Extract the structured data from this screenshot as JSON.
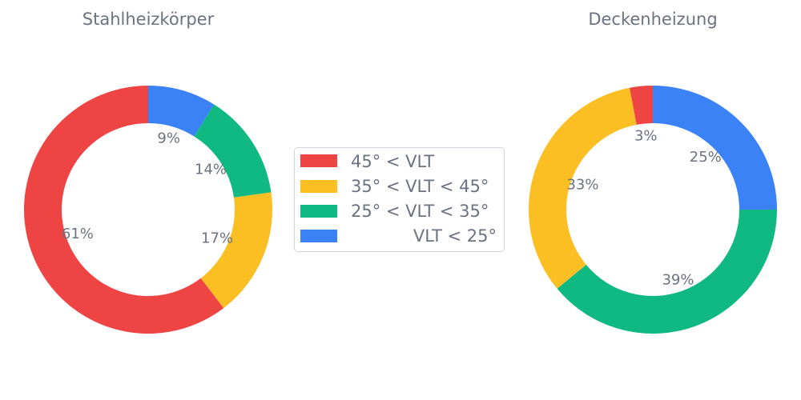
{
  "chart_data": [
    {
      "type": "pie",
      "style": "donut",
      "title": "Stahlheizkörper",
      "categories": [
        "VLT < 25°",
        "25° < VLT < 35°",
        "35° < VLT < 45°",
        "45° < VLT"
      ],
      "values": [
        9,
        14,
        17,
        61
      ],
      "labels": [
        "9%",
        "14%",
        "17%",
        "61%"
      ]
    },
    {
      "type": "pie",
      "style": "donut",
      "title": "Deckenheizung",
      "categories": [
        "VLT < 25°",
        "25° < VLT < 35°",
        "35° < VLT < 45°",
        "45° < VLT"
      ],
      "values": [
        25,
        39,
        33,
        3
      ],
      "labels": [
        "25%",
        "39%",
        "33%",
        "3%"
      ]
    }
  ],
  "colors": {
    "45° < VLT": "#ef4444",
    "35° < VLT < 45°": "#fbbf24",
    "25° < VLT < 35°": "#10b981",
    "VLT < 25°": "#3b82f6"
  },
  "legend": {
    "placement": "center",
    "items": [
      {
        "label": "45° < VLT",
        "color": "#ef4444"
      },
      {
        "label": "35° < VLT < 45°",
        "color": "#fbbf24"
      },
      {
        "label": "25° < VLT < 35°",
        "color": "#10b981"
      },
      {
        "label": "VLT < 25°",
        "color": "#3b82f6"
      }
    ]
  }
}
